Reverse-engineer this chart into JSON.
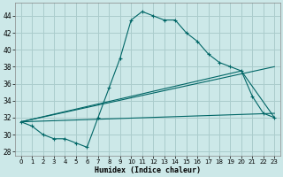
{
  "xlabel": "Humidex (Indice chaleur)",
  "bg_color": "#cce8e8",
  "grid_color": "#aacccc",
  "line_color": "#006666",
  "xlim": [
    -0.5,
    23.5
  ],
  "ylim": [
    27.5,
    45.5
  ],
  "xticks": [
    0,
    1,
    2,
    3,
    4,
    5,
    6,
    7,
    8,
    9,
    10,
    11,
    12,
    13,
    14,
    15,
    16,
    17,
    18,
    19,
    20,
    21,
    22,
    23
  ],
  "yticks": [
    28,
    30,
    32,
    34,
    36,
    38,
    40,
    42,
    44
  ],
  "line1_x": [
    0,
    1,
    2,
    3,
    4,
    5,
    6,
    7,
    8,
    9,
    10,
    11,
    12,
    13,
    14,
    15,
    16,
    17,
    18,
    19,
    20,
    21,
    22,
    23
  ],
  "line1_y": [
    31.5,
    31.0,
    30.0,
    29.5,
    29.5,
    29.0,
    28.5,
    32.0,
    35.5,
    39.0,
    43.5,
    44.5,
    44.0,
    43.5,
    43.5,
    42.0,
    41.0,
    39.5,
    38.5,
    38.0,
    37.5,
    34.5,
    32.5,
    32.0
  ],
  "line2_x": [
    0,
    23
  ],
  "line2_y": [
    31.5,
    38.0
  ],
  "line3_x": [
    0,
    23
  ],
  "line3_y": [
    31.5,
    32.5
  ],
  "line4_x": [
    0,
    20,
    23
  ],
  "line4_y": [
    31.5,
    37.5,
    32.0
  ]
}
